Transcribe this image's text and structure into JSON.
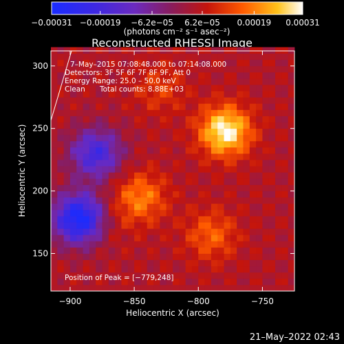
{
  "chart_data": {
    "type": "heatmap",
    "title": "Reconstructed RHESSI Image",
    "xlabel": "Heliocentric X (arcsec)",
    "ylabel": "Heliocentric Y (arcsec)",
    "xlim": [
      -915,
      -725
    ],
    "ylim": [
      120,
      312
    ],
    "x_ticks": [
      {
        "value": -900,
        "label": "−900"
      },
      {
        "value": -850,
        "label": "−850"
      },
      {
        "value": -800,
        "label": "−800"
      },
      {
        "value": -750,
        "label": "−750"
      }
    ],
    "y_ticks": [
      {
        "value": 150,
        "label": "150"
      },
      {
        "value": 200,
        "label": "200"
      },
      {
        "value": 250,
        "label": "250"
      },
      {
        "value": 300,
        "label": "300"
      }
    ],
    "colorbar": {
      "range": [
        -0.00031,
        0.00031
      ],
      "ticks": [
        {
          "value": -0.00031,
          "label": "−0.00031"
        },
        {
          "value": -0.00019,
          "label": "−0.00019"
        },
        {
          "value": -6.2e-05,
          "label": "−6.2e−05"
        },
        {
          "value": 6.2e-05,
          "label": "6.2e−05"
        },
        {
          "value": 0.00019,
          "label": "0.00019"
        },
        {
          "value": 0.00031,
          "label": "0.00031"
        }
      ],
      "unit_label": "(photons cm⁻² s⁻¹ asec⁻²)"
    },
    "annotations": {
      "time_range": "7–May–2015 07:08:48.000 to 07:14:08.000",
      "detectors": "Detectors: 3F 5F 6F 7F 8F 9F, Att 0",
      "energy_range": "Energy Range: 25.0 – 50.0 keV",
      "clean": "Clean",
      "total_counts": "Total counts: 8.88E+03",
      "peak_position": "Position of Peak = [−779,248]"
    },
    "bright_regions": [
      {
        "x": -779,
        "y": 248,
        "value": 0.00031
      },
      {
        "x": -845,
        "y": 195,
        "value": 0.00019
      },
      {
        "x": -790,
        "y": 165,
        "value": 0.00016
      },
      {
        "x": -830,
        "y": 282,
        "value": 0.00012
      },
      {
        "x": -870,
        "y": 175,
        "value": 8e-05
      }
    ],
    "dark_regions": [
      {
        "x": -893,
        "y": 178,
        "value": -0.00031
      },
      {
        "x": -880,
        "y": 230,
        "value": -0.00019
      }
    ]
  },
  "date_stamp": "21–May–2022 02:43"
}
